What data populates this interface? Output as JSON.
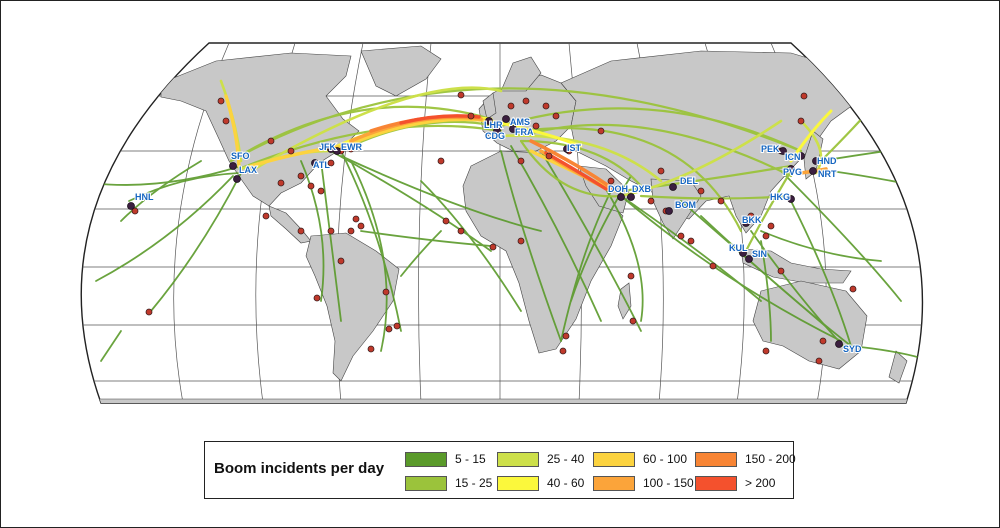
{
  "map": {
    "projection": "Robinson",
    "land_color": "#c8c8c8",
    "ocean_color": "#ffffff",
    "graticule": true,
    "airport_color": "#c0392b",
    "hub_color": "#3b1f3f",
    "airports": [
      {
        "code": "HNL"
      },
      {
        "code": "SFO"
      },
      {
        "code": "LAX"
      },
      {
        "code": "JFK"
      },
      {
        "code": "EWR"
      },
      {
        "code": "ATL"
      },
      {
        "code": "LHR"
      },
      {
        "code": "AMS"
      },
      {
        "code": "CDG"
      },
      {
        "code": "FRA"
      },
      {
        "code": "IST"
      },
      {
        "code": "DOH"
      },
      {
        "code": "DXB"
      },
      {
        "code": "DEL"
      },
      {
        "code": "BOM"
      },
      {
        "code": "PEK"
      },
      {
        "code": "ICN"
      },
      {
        "code": "HND"
      },
      {
        "code": "NRT"
      },
      {
        "code": "PVG"
      },
      {
        "code": "HKG"
      },
      {
        "code": "BKK"
      },
      {
        "code": "KUL"
      },
      {
        "code": "SIN"
      },
      {
        "code": "SYD"
      }
    ]
  },
  "legend": {
    "title": "Boom incidents per day",
    "classes": [
      {
        "label": "5 - 15",
        "color": "#5a9a2a"
      },
      {
        "label": "15 - 25",
        "color": "#9bc33b"
      },
      {
        "label": "25 - 40",
        "color": "#cde04a"
      },
      {
        "label": "40 - 60",
        "color": "#fbf83c"
      },
      {
        "label": "60 - 100",
        "color": "#fcd33f"
      },
      {
        "label": "100 - 150",
        "color": "#fba43a"
      },
      {
        "label": "150 - 200",
        "color": "#f88535"
      },
      {
        "label": "> 200",
        "color": "#f4512d"
      }
    ]
  }
}
